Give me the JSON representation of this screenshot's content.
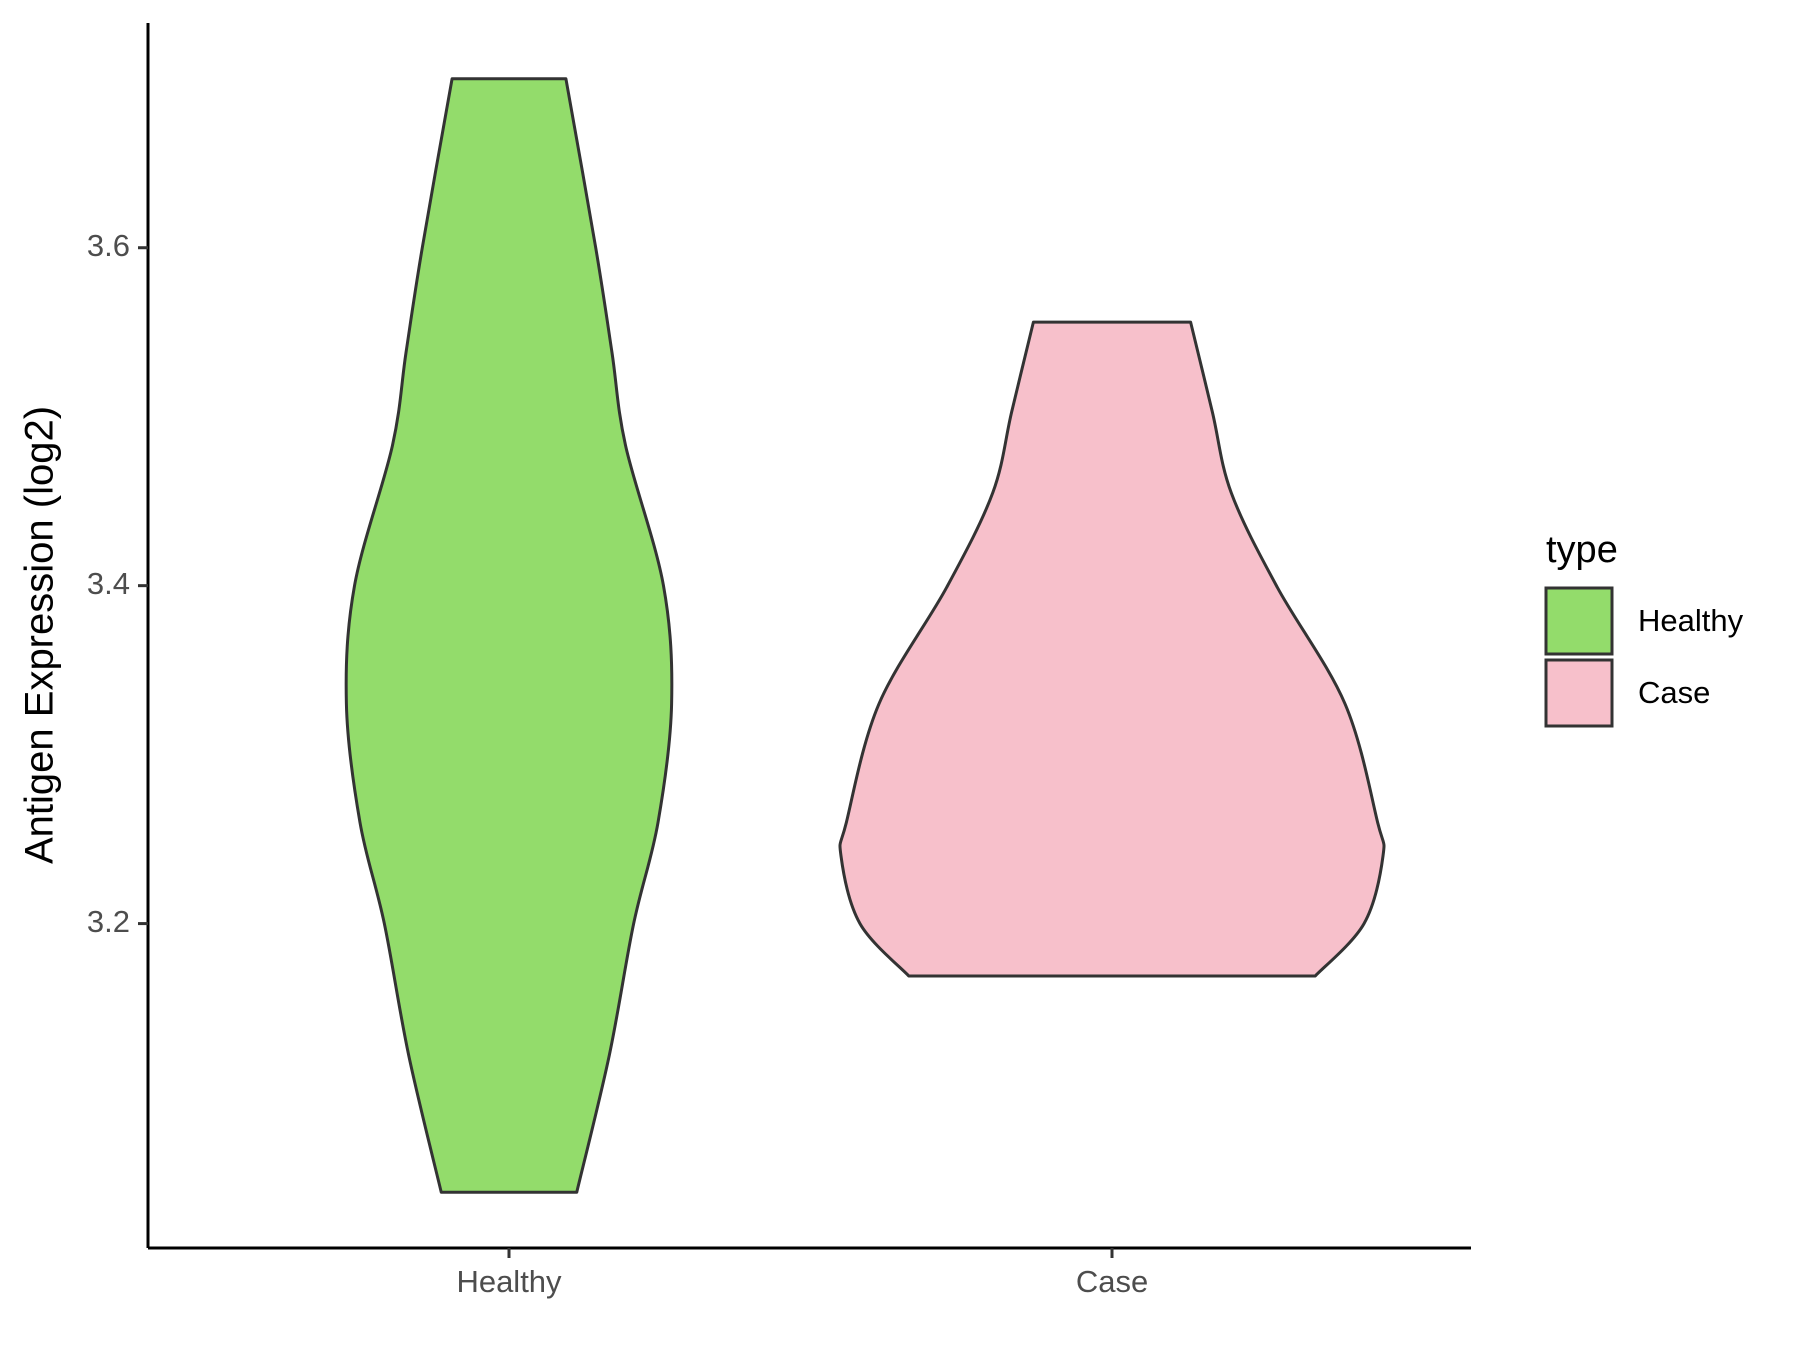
{
  "chart_data": {
    "type": "violin",
    "y_label": "Antigen Expression (log2)",
    "categories": [
      "Healthy",
      "Case"
    ],
    "series": [
      {
        "name": "Healthy",
        "color": "#93dc6b",
        "y": [
          3.7,
          3.6,
          3.538,
          3.483,
          3.4,
          3.33,
          3.26,
          3.2,
          3.122,
          3.041
        ],
        "density": [
          0.21,
          0.32,
          0.38,
          0.43,
          0.57,
          0.6,
          0.55,
          0.46,
          0.37,
          0.25
        ]
      },
      {
        "name": "Case",
        "color": "#f7c0cb",
        "y": [
          3.556,
          3.503,
          3.455,
          3.399,
          3.33,
          3.26,
          3.24,
          3.2,
          3.169
        ],
        "density": [
          0.29,
          0.37,
          0.44,
          0.61,
          0.86,
          0.98,
          1.0,
          0.93,
          0.75
        ]
      }
    ],
    "ylim": [
      3.008,
      3.733
    ],
    "yticks": [
      3.2,
      3.4,
      3.6
    ],
    "legend_title": "type",
    "legend": "right"
  }
}
